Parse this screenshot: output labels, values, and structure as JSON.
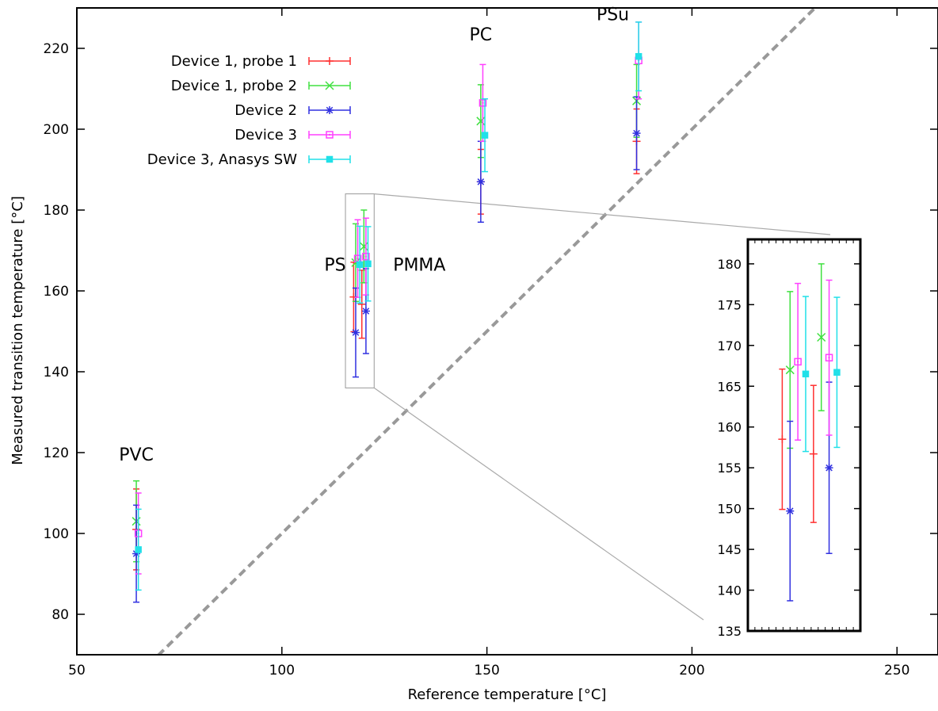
{
  "chart_data": {
    "type": "scatter",
    "xlabel": "Reference temperature [°C]",
    "ylabel": "Measured transition temperature [°C]",
    "xlim": [
      50,
      260
    ],
    "ylim": [
      70,
      230
    ],
    "x_ticks": [
      50,
      100,
      150,
      200,
      250
    ],
    "y_ticks": [
      80,
      100,
      120,
      140,
      160,
      180,
      200,
      220
    ],
    "reference_line": {
      "style": "dashed",
      "color": "#999999",
      "slope": 1,
      "description": "y = x"
    },
    "legend_position": "top-left",
    "materials": [
      {
        "label": "PVC",
        "x": 64.5,
        "label_y": 118
      },
      {
        "label": "PS",
        "x": 118,
        "label_y": 165
      },
      {
        "label": "PMMA",
        "x": 120,
        "label_y": 165
      },
      {
        "label": "PC",
        "x": 148.5,
        "label_y": 222
      },
      {
        "label": "PSu",
        "x": 186.5,
        "label_y": 227
      }
    ],
    "series": [
      {
        "name": "Device 1, probe 1",
        "color": "#ff3030",
        "marker": "plus",
        "points": [
          {
            "x": 64.5,
            "y": 101,
            "err": 10
          },
          {
            "x": 117.5,
            "y": 158.5,
            "err": 8.6
          },
          {
            "x": 119.5,
            "y": 156.7,
            "err": 8.4
          },
          {
            "x": 148.5,
            "y": 187,
            "err": 8
          },
          {
            "x": 186.5,
            "y": 197,
            "err": 8
          }
        ]
      },
      {
        "name": "Device 1, probe 2",
        "color": "#40e040",
        "marker": "cross",
        "points": [
          {
            "x": 64.5,
            "y": 103,
            "err": 10
          },
          {
            "x": 118,
            "y": 167,
            "err": 9.6
          },
          {
            "x": 120,
            "y": 171,
            "err": 9
          },
          {
            "x": 148.5,
            "y": 202,
            "err": 9
          },
          {
            "x": 186.5,
            "y": 207,
            "err": 9
          }
        ]
      },
      {
        "name": "Device 2",
        "color": "#3030e0",
        "marker": "star",
        "points": [
          {
            "x": 64.5,
            "y": 95,
            "err": 12
          },
          {
            "x": 118,
            "y": 149.7,
            "err": 11
          },
          {
            "x": 120.5,
            "y": 155,
            "err": 10.5
          },
          {
            "x": 148.5,
            "y": 187,
            "err": 10
          },
          {
            "x": 186.5,
            "y": 199,
            "err": 9
          }
        ]
      },
      {
        "name": "Device 3",
        "color": "#ff40ff",
        "marker": "open-square",
        "points": [
          {
            "x": 65,
            "y": 100,
            "err": 10
          },
          {
            "x": 118.5,
            "y": 168,
            "err": 9.6
          },
          {
            "x": 120.5,
            "y": 168.5,
            "err": 9.5
          },
          {
            "x": 149,
            "y": 206.5,
            "err": 9.5
          },
          {
            "x": 187,
            "y": 217,
            "err": 9.5
          }
        ]
      },
      {
        "name": "Device 3, Anasys SW",
        "color": "#20e0e8",
        "marker": "filled-square",
        "points": [
          {
            "x": 65,
            "y": 96,
            "err": 10
          },
          {
            "x": 119,
            "y": 166.5,
            "err": 9.5
          },
          {
            "x": 121,
            "y": 166.7,
            "err": 9.2
          },
          {
            "x": 149.5,
            "y": 198.5,
            "err": 9
          },
          {
            "x": 187,
            "y": 218,
            "err": 8.5
          }
        ]
      }
    ],
    "inset": {
      "description": "zoom of PS / PMMA region",
      "source_box": {
        "x": [
          115.5,
          122.5
        ],
        "y": [
          136,
          184
        ]
      },
      "ylim": [
        135,
        183
      ],
      "y_ticks": [
        135,
        140,
        145,
        150,
        155,
        160,
        165,
        170,
        175,
        180
      ],
      "xlim": [
        115.3,
        122.5
      ]
    }
  }
}
